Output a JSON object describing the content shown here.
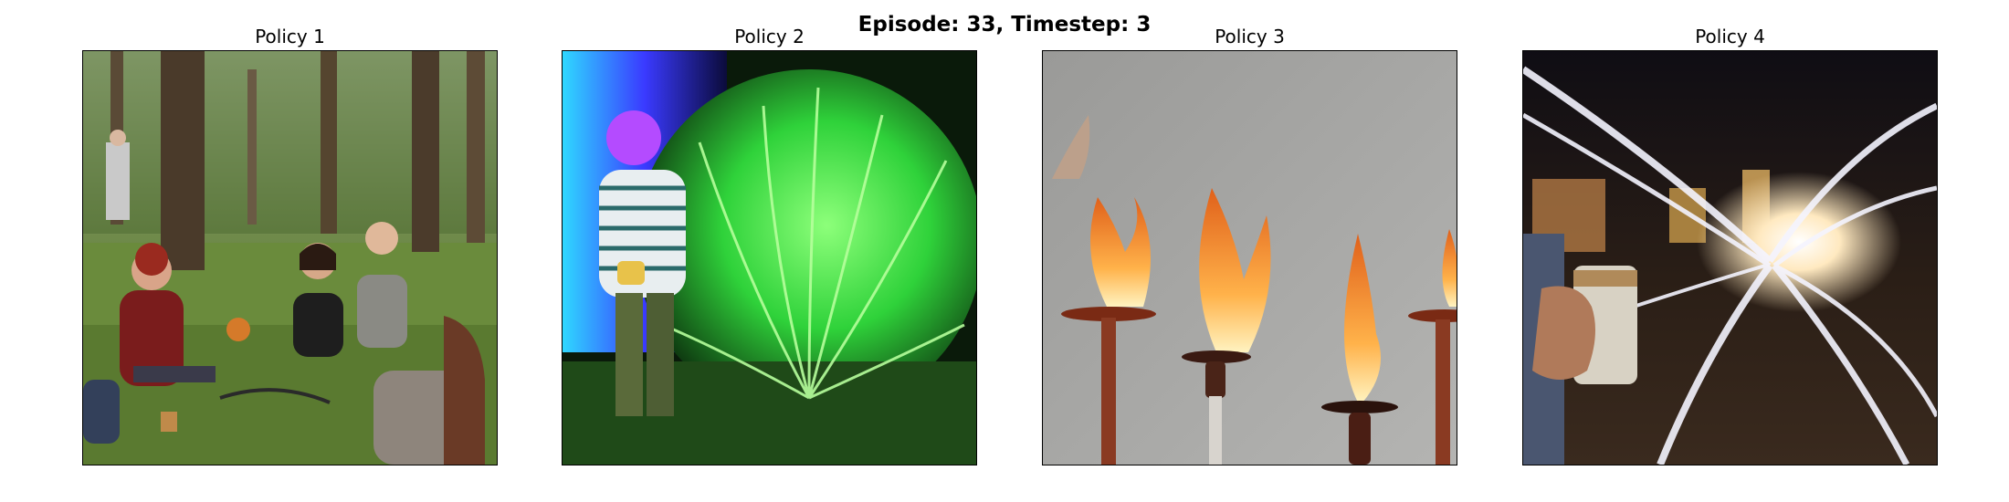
{
  "figure": {
    "title": "Episode: 33, Timestep: 3"
  },
  "panels": [
    {
      "title": "Policy 1",
      "image": "people-sitting-in-forest-clearing"
    },
    {
      "title": "Policy 2",
      "image": "person-beside-glowing-green-plant"
    },
    {
      "title": "Policy 3",
      "image": "candle-flames-on-holders"
    },
    {
      "title": "Policy 4",
      "image": "hand-holding-cup-with-light-trails"
    }
  ],
  "colors": {
    "background": "#ffffff",
    "text": "#000000",
    "forest_green": "#5c7a3a",
    "neon_green": "#3cff4a",
    "flame_orange": "#ff9a30",
    "night_sky": "#1a1410"
  }
}
